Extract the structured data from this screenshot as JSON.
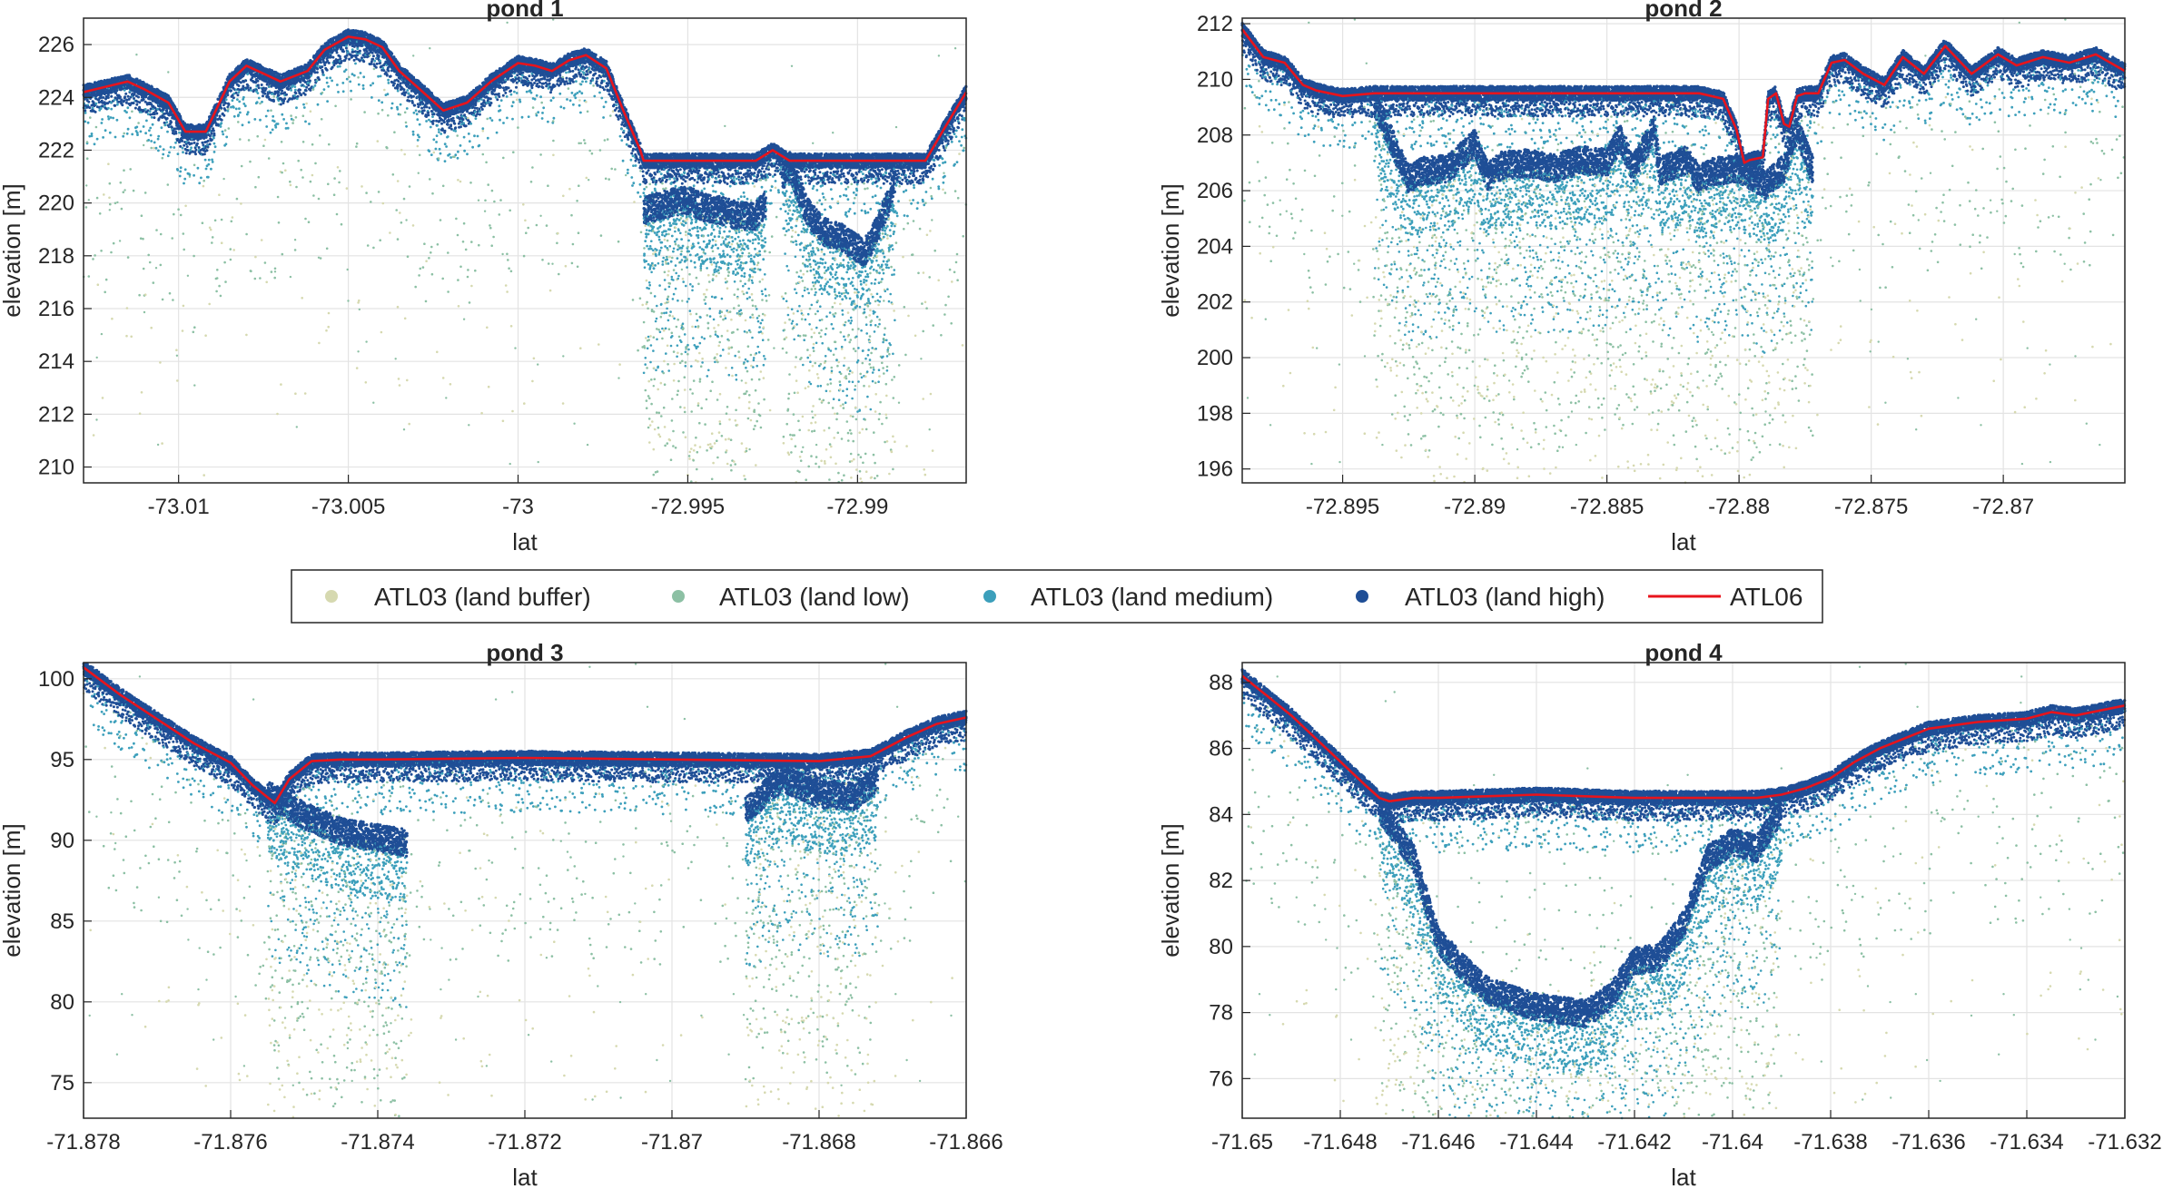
{
  "colors": {
    "land_buffer": "#d6d9b0",
    "land_low": "#8cc0a4",
    "land_medium": "#3c9fbb",
    "land_high": "#1f4e96",
    "atl06": "#e8141c",
    "grid": "#e3e3e3",
    "axis": "#262626"
  },
  "legend": {
    "placement": "center (between rows)",
    "items": [
      {
        "key": "land_buffer",
        "label": "ATL03 (land buffer)",
        "type": "marker"
      },
      {
        "key": "land_low",
        "label": "ATL03 (land low)",
        "type": "marker"
      },
      {
        "key": "land_medium",
        "label": "ATL03 (land medium)",
        "type": "marker"
      },
      {
        "key": "land_high",
        "label": "ATL03 (land high)",
        "type": "marker"
      },
      {
        "key": "atl06",
        "label": "ATL06",
        "type": "line"
      }
    ]
  },
  "chart_data": [
    {
      "type": "scatter",
      "title": "pond 1",
      "xlabel": "lat",
      "ylabel": "elevation [m]",
      "xlim": [
        -73.0128,
        -72.9868
      ],
      "ylim": [
        209.4,
        227
      ],
      "grid": true,
      "xticks": [
        -73.01,
        -73.005,
        -73,
        -72.995,
        -72.99
      ],
      "xticklabels": [
        "-73.01",
        "-73.005",
        "-73",
        "-72.995",
        "-72.99"
      ],
      "yticks": [
        210,
        212,
        214,
        216,
        218,
        220,
        222,
        224,
        226
      ],
      "yticklabels": [
        "210",
        "212",
        "214",
        "216",
        "218",
        "220",
        "222",
        "224",
        "226"
      ],
      "surface": {
        "x": [
          -73.0128,
          -73.0115,
          -73.011,
          -73.0103,
          -73.0098,
          -73.0092,
          -73.0085,
          -73.008,
          -73.0075,
          -73.007,
          -73.0062,
          -73.0057,
          -73.005,
          -73.0045,
          -73.004,
          -73.0035,
          -73.0028,
          -73.0022,
          -73.0015,
          -73.0008,
          -73.0,
          -72.9995,
          -72.999,
          -72.9985,
          -72.998,
          -72.9974,
          -72.9969,
          -72.9964,
          -72.9963,
          -72.993,
          -72.9925,
          -72.992,
          -72.9915,
          -72.988,
          -72.9875,
          -72.9868
        ],
        "y": [
          224.2,
          224.6,
          224.3,
          223.8,
          222.7,
          222.7,
          224.6,
          225.2,
          224.9,
          224.6,
          225.0,
          225.8,
          226.3,
          226.2,
          225.9,
          225.0,
          224.2,
          223.5,
          223.8,
          224.6,
          225.3,
          225.2,
          225.0,
          225.4,
          225.6,
          225.1,
          223.5,
          222.0,
          221.6,
          221.6,
          222.0,
          221.6,
          221.6,
          221.6,
          222.7,
          224.2
        ]
      },
      "bottom": {
        "x": [
          -72.9963,
          -72.9955,
          -72.995,
          -72.9945,
          -72.994,
          -72.9935,
          -72.993,
          -72.9926,
          -72.992,
          -72.9915,
          -72.991,
          -72.9905,
          -72.9898,
          -72.9894,
          -72.9889
        ],
        "y": [
          219.5,
          219.8,
          219.9,
          219.6,
          219.5,
          219.3,
          219.3,
          220.0,
          221.2,
          219.5,
          218.7,
          218.5,
          217.9,
          218.8,
          220.5
        ]
      },
      "sparse_ranges": [
        [
          -73.0128,
          -72.9963
        ],
        [
          -72.9889,
          -72.9868
        ]
      ],
      "dense_ranges": [
        [
          -72.9963,
          -72.9927
        ],
        [
          -72.9922,
          -72.9889
        ]
      ]
    },
    {
      "type": "scatter",
      "title": "pond 2",
      "xlabel": "lat",
      "ylabel": "elevation [m]",
      "xlim": [
        -72.8988,
        -72.8654
      ],
      "ylim": [
        195.5,
        212.2
      ],
      "grid": true,
      "xticks": [
        -72.895,
        -72.89,
        -72.885,
        -72.88,
        -72.875,
        -72.87
      ],
      "xticklabels": [
        "-72.895",
        "-72.89",
        "-72.885",
        "-72.88",
        "-72.875",
        "-72.87"
      ],
      "yticks": [
        196,
        198,
        200,
        202,
        204,
        206,
        208,
        210,
        212
      ],
      "yticklabels": [
        "196",
        "198",
        "200",
        "202",
        "204",
        "206",
        "208",
        "210",
        "212"
      ],
      "surface": {
        "x": [
          -72.8988,
          -72.898,
          -72.8972,
          -72.8965,
          -72.896,
          -72.895,
          -72.8938,
          -72.8815,
          -72.8806,
          -72.8801,
          -72.8798,
          -72.8796,
          -72.8791,
          -72.8789,
          -72.8786,
          -72.8783,
          -72.8781,
          -72.8778,
          -72.8775,
          -72.877,
          -72.8765,
          -72.876,
          -72.8753,
          -72.8745,
          -72.8738,
          -72.873,
          -72.8722,
          -72.8712,
          -72.8702,
          -72.8695,
          -72.8685,
          -72.8675,
          -72.8665,
          -72.8654
        ],
        "y": [
          211.8,
          210.8,
          210.6,
          209.8,
          209.6,
          209.4,
          209.5,
          209.5,
          209.3,
          208.2,
          207.0,
          207.1,
          207.2,
          209.3,
          209.5,
          208.4,
          208.3,
          209.4,
          209.5,
          209.5,
          210.6,
          210.7,
          210.2,
          209.8,
          210.8,
          210.2,
          211.2,
          210.2,
          210.9,
          210.5,
          210.8,
          210.6,
          210.9,
          210.3
        ]
      },
      "bottom": {
        "x": [
          -72.8938,
          -72.8925,
          -72.892,
          -72.891,
          -72.89,
          -72.8895,
          -72.889,
          -72.888,
          -72.887,
          -72.886,
          -72.885,
          -72.8845,
          -72.884,
          -72.8832,
          -72.883,
          -72.8825,
          -72.882,
          -72.8815,
          -72.881,
          -72.88,
          -72.879,
          -72.8783,
          -72.8778,
          -72.8772
        ],
        "y": [
          209.0,
          206.2,
          206.5,
          206.6,
          207.5,
          206.3,
          206.7,
          206.8,
          206.6,
          206.9,
          206.8,
          207.7,
          206.6,
          208.0,
          206.5,
          206.7,
          206.9,
          206.2,
          206.5,
          206.6,
          206.0,
          206.6,
          208.0,
          206.5
        ]
      },
      "sparse_ranges": [
        [
          -72.8988,
          -72.8938
        ],
        [
          -72.8772,
          -72.8654
        ]
      ],
      "dense_ranges": [
        [
          -72.8938,
          -72.8772
        ]
      ]
    },
    {
      "type": "scatter",
      "title": "pond 3",
      "xlabel": "lat",
      "ylabel": "elevation [m]",
      "xlim": [
        -71.878,
        -71.866
      ],
      "ylim": [
        72.8,
        101
      ],
      "grid": true,
      "xticks": [
        -71.878,
        -71.876,
        -71.874,
        -71.872,
        -71.87,
        -71.868,
        -71.866
      ],
      "xticklabels": [
        "-71.878",
        "-71.876",
        "-71.874",
        "-71.872",
        "-71.87",
        "-71.868",
        "-71.866"
      ],
      "yticks": [
        75,
        80,
        85,
        90,
        95,
        100
      ],
      "yticklabels": [
        "75",
        "80",
        "85",
        "90",
        "95",
        "100"
      ],
      "surface": {
        "x": [
          -71.878,
          -71.8775,
          -71.877,
          -71.8765,
          -71.876,
          -71.8757,
          -71.8754,
          -71.8752,
          -71.8749,
          -71.8745,
          -71.874,
          -71.872,
          -71.87,
          -71.868,
          -71.8673,
          -71.8668,
          -71.8664,
          -71.866
        ],
        "y": [
          100.7,
          99.0,
          97.5,
          96.0,
          94.8,
          93.4,
          92.3,
          93.8,
          94.9,
          95.0,
          95.0,
          95.1,
          95.0,
          94.9,
          95.2,
          96.4,
          97.2,
          97.6
        ]
      },
      "bottom": {
        "x": [
          -71.8755,
          -71.875,
          -71.8745,
          -71.8736,
          -71.869,
          -71.8685,
          -71.868,
          -71.8675,
          -71.8672
        ],
        "y": [
          92.5,
          91.2,
          90.2,
          89.5,
          91.5,
          93.5,
          92.5,
          92.4,
          93.5
        ]
      },
      "sparse_ranges": [
        [
          -71.878,
          -71.8755
        ],
        [
          -71.8736,
          -71.869
        ],
        [
          -71.8672,
          -71.866
        ]
      ],
      "dense_ranges": [
        [
          -71.8755,
          -71.8736
        ],
        [
          -71.869,
          -71.8672
        ]
      ]
    },
    {
      "type": "scatter",
      "title": "pond 4",
      "xlabel": "lat",
      "ylabel": "elevation [m]",
      "xlim": [
        -71.65,
        -71.632
      ],
      "ylim": [
        74.8,
        88.6
      ],
      "grid": true,
      "xticks": [
        -71.65,
        -71.648,
        -71.646,
        -71.644,
        -71.642,
        -71.64,
        -71.638,
        -71.636,
        -71.634,
        -71.632
      ],
      "xticklabels": [
        "-71.65",
        "-71.648",
        "-71.646",
        "-71.644",
        "-71.642",
        "-71.64",
        "-71.638",
        "-71.636",
        "-71.634",
        "-71.632"
      ],
      "yticks": [
        76,
        78,
        80,
        82,
        84,
        86,
        88
      ],
      "yticklabels": [
        "76",
        "78",
        "80",
        "82",
        "84",
        "86",
        "88"
      ],
      "surface": {
        "x": [
          -71.65,
          -71.6495,
          -71.649,
          -71.6485,
          -71.648,
          -71.6475,
          -71.6472,
          -71.647,
          -71.6465,
          -71.646,
          -71.644,
          -71.642,
          -71.641,
          -71.6395,
          -71.639,
          -71.6385,
          -71.638,
          -71.6375,
          -71.637,
          -71.6365,
          -71.636,
          -71.635,
          -71.634,
          -71.6335,
          -71.633,
          -71.632
        ],
        "y": [
          88.2,
          87.6,
          87.0,
          86.3,
          85.6,
          84.9,
          84.5,
          84.4,
          84.5,
          84.5,
          84.6,
          84.5,
          84.5,
          84.5,
          84.6,
          84.8,
          85.1,
          85.6,
          86.0,
          86.3,
          86.6,
          86.8,
          86.9,
          87.1,
          87.0,
          87.3
        ]
      },
      "bottom": {
        "x": [
          -71.6472,
          -71.6465,
          -71.646,
          -71.6455,
          -71.645,
          -71.644,
          -71.643,
          -71.6425,
          -71.642,
          -71.6415,
          -71.641,
          -71.6405,
          -71.64,
          -71.6395,
          -71.639
        ],
        "y": [
          84.0,
          82.5,
          80.0,
          79.2,
          78.5,
          78.0,
          77.8,
          78.3,
          79.4,
          79.5,
          80.5,
          82.5,
          83.0,
          82.8,
          84.0
        ]
      },
      "sparse_ranges": [
        [
          -71.65,
          -71.6472
        ],
        [
          -71.639,
          -71.632
        ]
      ],
      "dense_ranges": [
        [
          -71.6472,
          -71.639
        ]
      ]
    }
  ]
}
